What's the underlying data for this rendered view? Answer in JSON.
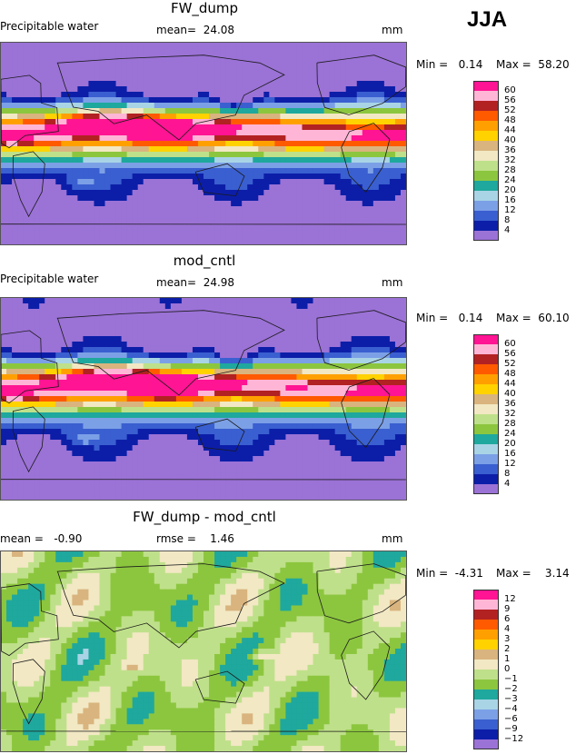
{
  "season": "JJA",
  "panels": [
    {
      "title": "FW_dump",
      "field_label": "Precipitable water",
      "mean_text": "mean=  24.08",
      "units": "mm",
      "min_text": "Min =   0.14",
      "max_text": "Max =  58.20"
    },
    {
      "title": "mod_cntl",
      "field_label": "Precipitable water",
      "mean_text": "mean=  24.98",
      "units": "mm",
      "min_text": "Min =   0.14",
      "max_text": "Max =  60.10"
    },
    {
      "title": "FW_dump - mod_cntl",
      "mean_text": "mean =   -0.90",
      "rmse_text": "rmse =    1.46",
      "units": "mm",
      "min_text": "Min =  -4.31",
      "max_text": "Max =    3.14"
    }
  ],
  "chart_data": [
    {
      "type": "heatmap",
      "title": "FW_dump",
      "variable": "Precipitable water",
      "units": "mm",
      "mean": 24.08,
      "min": 0.14,
      "max": 58.2,
      "levels": [
        4,
        8,
        12,
        16,
        20,
        24,
        28,
        32,
        36,
        40,
        44,
        48,
        52,
        56,
        60
      ],
      "colors": [
        "#9b72d6",
        "#0c1ea8",
        "#3a5fd0",
        "#7ca0e6",
        "#a9d4e6",
        "#1fa89d",
        "#8cc63f",
        "#bfe08a",
        "#f2e8c4",
        "#d9b47e",
        "#ffd200",
        "#ffa000",
        "#ff5a00",
        "#b22222",
        "#ffb6d6",
        "#ff1493"
      ]
    },
    {
      "type": "heatmap",
      "title": "mod_cntl",
      "variable": "Precipitable water",
      "units": "mm",
      "mean": 24.98,
      "min": 0.14,
      "max": 60.1,
      "levels": [
        4,
        8,
        12,
        16,
        20,
        24,
        28,
        32,
        36,
        40,
        44,
        48,
        52,
        56,
        60
      ],
      "colors": [
        "#9b72d6",
        "#0c1ea8",
        "#3a5fd0",
        "#7ca0e6",
        "#a9d4e6",
        "#1fa89d",
        "#8cc63f",
        "#bfe08a",
        "#f2e8c4",
        "#d9b47e",
        "#ffd200",
        "#ffa000",
        "#ff5a00",
        "#b22222",
        "#ffb6d6",
        "#ff1493"
      ]
    },
    {
      "type": "heatmap",
      "title": "FW_dump - mod_cntl",
      "units": "mm",
      "mean": -0.9,
      "rmse": 1.46,
      "min": -4.31,
      "max": 3.14,
      "levels": [
        -12,
        -9,
        -6,
        -4,
        -3,
        -2,
        -1,
        0,
        1,
        2,
        3,
        4,
        6,
        9,
        12
      ],
      "level_labels": [
        "−12",
        "−9",
        "−6",
        "−4",
        "−3",
        "−2",
        "−1",
        "0",
        "1",
        "2",
        "3",
        "4",
        "6",
        "9",
        "12"
      ],
      "colors": [
        "#9b72d6",
        "#0c1ea8",
        "#3a5fd0",
        "#7ca0e6",
        "#a9d4e6",
        "#1fa89d",
        "#8cc63f",
        "#bfe08a",
        "#f2e8c4",
        "#d9b47e",
        "#ffd200",
        "#ffa000",
        "#ff5a00",
        "#b22222",
        "#ffb6d6",
        "#ff1493"
      ]
    }
  ]
}
